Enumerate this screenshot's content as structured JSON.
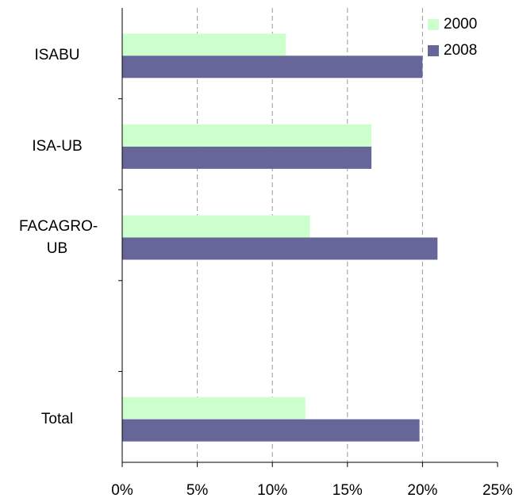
{
  "chart_data": {
    "type": "hbar",
    "categories": [
      "ISABU",
      "ISA-UB",
      "FACAGRO-UB",
      null,
      "Total"
    ],
    "series": [
      {
        "name": "2000",
        "color": "#ccffcc",
        "values": [
          10.9,
          16.6,
          12.5,
          null,
          12.2
        ]
      },
      {
        "name": "2008",
        "color": "#666699",
        "values": [
          20.0,
          16.6,
          21.0,
          null,
          19.8
        ]
      }
    ],
    "xlim": [
      0,
      25
    ],
    "xticks": [
      {
        "value": 0,
        "label": "0%"
      },
      {
        "value": 5,
        "label": "5%"
      },
      {
        "value": 10,
        "label": "10%"
      },
      {
        "value": 15,
        "label": "15%"
      },
      {
        "value": 20,
        "label": "20%"
      },
      {
        "value": 25,
        "label": "25%"
      }
    ],
    "grid": true,
    "legend": "top-right"
  }
}
